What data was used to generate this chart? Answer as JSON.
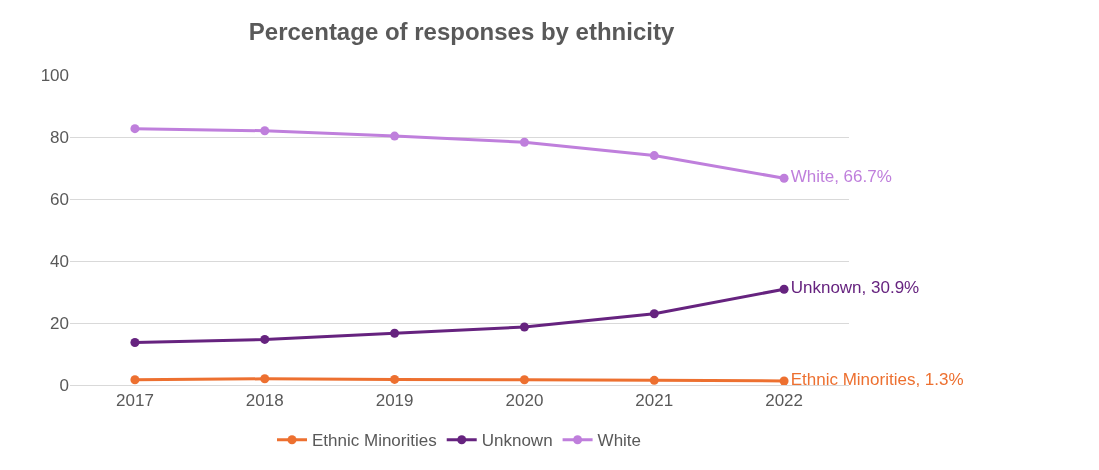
{
  "chart_data": {
    "type": "line",
    "title": "Percentage of responses by ethnicity",
    "categories": [
      "2017",
      "2018",
      "2019",
      "2020",
      "2021",
      "2022"
    ],
    "series": [
      {
        "name": "Ethnic Minorities",
        "color": "#ed7030",
        "values": [
          1.7,
          2,
          1.8,
          1.7,
          1.5,
          1.3
        ],
        "value_labels": [
          null,
          null,
          null,
          null,
          null,
          "Ethnic Minorities, 1.3%"
        ]
      },
      {
        "name": "Unknown",
        "color": "#66237f",
        "values": [
          13.7,
          14.7,
          16.7,
          18.7,
          23,
          30.9
        ],
        "value_labels": [
          null,
          null,
          null,
          null,
          null,
          "Unknown, 30.9%"
        ]
      },
      {
        "name": "White",
        "color": "#bf7fdc",
        "values": [
          82.7,
          82,
          80.3,
          78.3,
          74,
          66.7
        ],
        "value_labels": [
          null,
          null,
          null,
          null,
          null,
          "White, 66.7%"
        ]
      }
    ],
    "ylim": [
      0,
      100
    ],
    "yticks": [
      0,
      20,
      40,
      60,
      80,
      100
    ],
    "grid": "y",
    "legend": "bottom",
    "marker": "circle",
    "line_style": "solid"
  }
}
